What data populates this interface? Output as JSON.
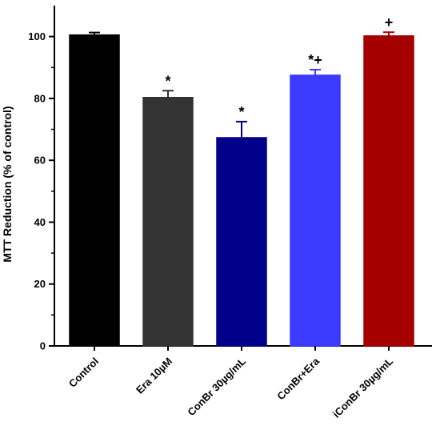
{
  "chart_data": {
    "type": "bar",
    "categories": [
      "Control",
      "Era 10µM",
      "ConBr 30µg/mL",
      "ConBr+Era",
      "iConBr 30µg/mL"
    ],
    "values": [
      100.5,
      80.3,
      67.3,
      87.5,
      100.2
    ],
    "errors": [
      0.8,
      2.2,
      5.2,
      1.8,
      1.2
    ],
    "significance": [
      "",
      "*",
      "*",
      "*+",
      "+"
    ],
    "colors": [
      "#000000",
      "#333333",
      "#00008b",
      "#3b3bff",
      "#a40000"
    ],
    "ylabel": "MTT Reduction (% of control)",
    "ylim": [
      0,
      110
    ],
    "yticks": [
      0,
      20,
      40,
      60,
      80,
      100
    ]
  }
}
